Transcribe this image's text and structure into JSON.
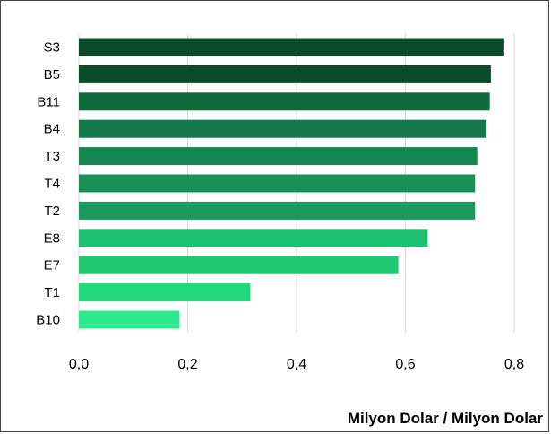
{
  "chart_data": {
    "type": "bar",
    "orientation": "horizontal",
    "categories": [
      "S3",
      "B5",
      "B11",
      "B4",
      "T3",
      "T4",
      "T2",
      "E8",
      "E7",
      "T1",
      "B10"
    ],
    "values": [
      0.78,
      0.757,
      0.755,
      0.749,
      0.732,
      0.728,
      0.728,
      0.641,
      0.587,
      0.315,
      0.185
    ],
    "colors": [
      "#0b4a2a",
      "#0b4a2a",
      "#0f6b3c",
      "#13784a",
      "#15854f",
      "#178f55",
      "#199a5c",
      "#1cc26f",
      "#1ec972",
      "#22d97a",
      "#2ee88f"
    ],
    "xlabel": "Milyon Dolar / Milyon Dolar",
    "ylabel": "",
    "title": "",
    "xlim": [
      0,
      0.8
    ],
    "x_ticks": [
      "0,0",
      "0,2",
      "0,4",
      "0,6",
      "0,8"
    ],
    "x_tick_values": [
      0,
      0.2,
      0.4,
      0.6,
      0.8
    ],
    "grid": "vertical",
    "legend": "none"
  }
}
